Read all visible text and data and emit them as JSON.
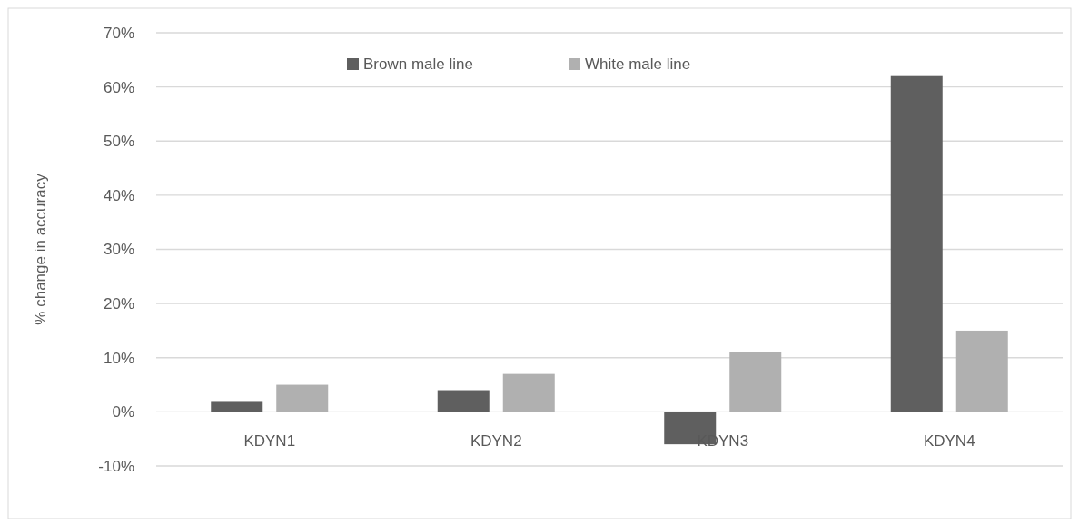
{
  "chart_data": {
    "type": "bar",
    "ylabel": "% change in accuracy",
    "categories": [
      "KDYN1",
      "KDYN2",
      "KDYN3",
      "KDYN4"
    ],
    "series": [
      {
        "name": "Brown male line",
        "color": "#5f5f5f",
        "values": [
          2,
          4,
          -6,
          62
        ]
      },
      {
        "name": "White male line",
        "color": "#b0b0b0",
        "values": [
          5,
          7,
          11,
          15
        ]
      }
    ],
    "ylim": [
      -10,
      70
    ],
    "yticks": [
      {
        "value": -10,
        "label": "-10%"
      },
      {
        "value": 0,
        "label": "0%"
      },
      {
        "value": 10,
        "label": "10%"
      },
      {
        "value": 20,
        "label": "20%"
      },
      {
        "value": 30,
        "label": "30%"
      },
      {
        "value": 40,
        "label": "40%"
      },
      {
        "value": 50,
        "label": "50%"
      },
      {
        "value": 60,
        "label": "60%"
      },
      {
        "value": 70,
        "label": "70%"
      }
    ],
    "grid": "y",
    "legend": "top"
  }
}
